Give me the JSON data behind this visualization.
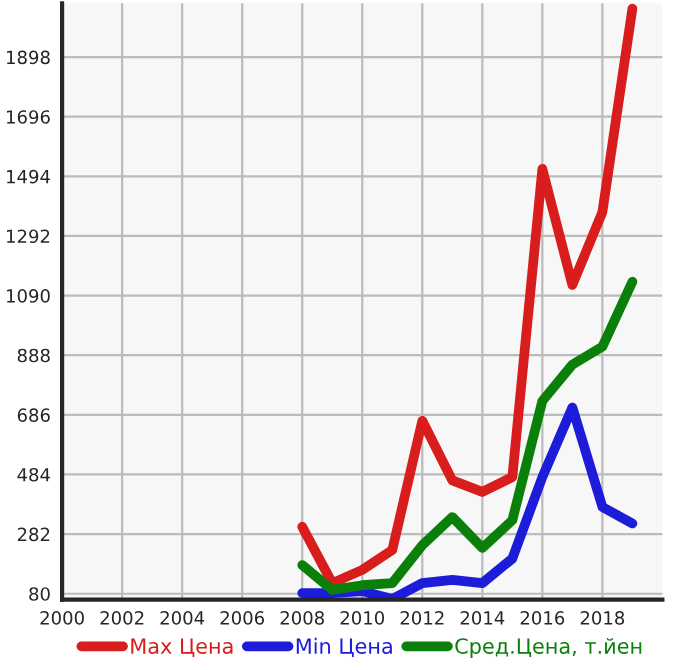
{
  "chart_data": {
    "type": "line",
    "x": [
      2008,
      2009,
      2010,
      2011,
      2012,
      2013,
      2014,
      2015,
      2016,
      2017,
      2018,
      2019
    ],
    "series": [
      {
        "name": "Max Цена",
        "color": "#d91c1c",
        "values": [
          307,
          116,
          161,
          228,
          666,
          464,
          425,
          475,
          1519,
          1126,
          1373,
          2062
        ]
      },
      {
        "name": "Min Цена",
        "color": "#1c1cd9",
        "values": [
          82,
          82,
          89,
          62,
          116,
          127,
          116,
          199,
          475,
          711,
          374,
          318
        ]
      },
      {
        "name": "Сред.Цена, т.йен",
        "color": "#0a800a",
        "values": [
          177,
          93,
          109,
          116,
          244,
          340,
          235,
          329,
          733,
          856,
          917,
          1137
        ]
      }
    ],
    "xlim": [
      2000,
      2020
    ],
    "xticks": [
      2000,
      2002,
      2004,
      2006,
      2008,
      2010,
      2012,
      2014,
      2016,
      2018
    ],
    "ylim": [
      60,
      2080
    ],
    "yticks": [
      80,
      282,
      484,
      686,
      888,
      1090,
      1292,
      1494,
      1696,
      1898
    ],
    "grid": true,
    "legend": "bottom",
    "marker": "none",
    "line_style": "solid"
  }
}
